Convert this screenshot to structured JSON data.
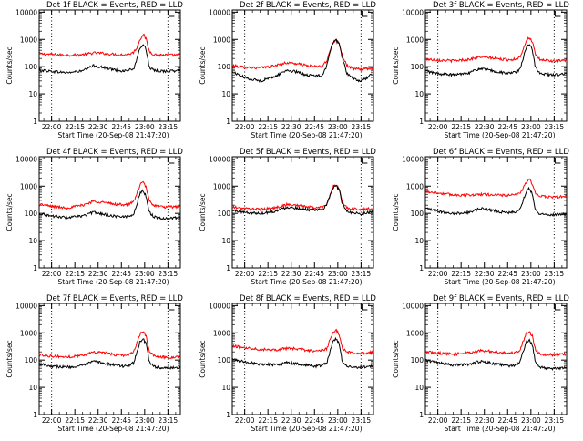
{
  "chart_data": [
    {
      "type": "line",
      "title": "Det 1f BLACK = Events, RED = LLD",
      "xlabel": "Start Time (20-Sep-08 21:47:20)",
      "ylabel": "Counts/sec",
      "x_tick_labels": [
        "22:00",
        "22:15",
        "22:30",
        "22:45",
        "23:00",
        "23:15"
      ],
      "x_tick_minutes": [
        0,
        15,
        30,
        45,
        60,
        75
      ],
      "xlim_minutes": [
        -8,
        83
      ],
      "vlines_minutes": [
        0,
        75
      ],
      "ylog": true,
      "ylim": [
        1,
        12000
      ],
      "y_tick_labels": [
        "1",
        "10",
        "100",
        "1000",
        "10000"
      ],
      "series": [
        {
          "color": "#ff0000",
          "x": [
            -8,
            0,
            10,
            20,
            27,
            33,
            40,
            46,
            50,
            53,
            55,
            57,
            59,
            61,
            63,
            66,
            70,
            75,
            83
          ],
          "values": [
            300,
            280,
            265,
            275,
            320,
            310,
            285,
            272,
            290,
            340,
            500,
            1000,
            1600,
            1000,
            360,
            280,
            270,
            265,
            270
          ]
        },
        {
          "color": "#000000",
          "x": [
            -8,
            0,
            10,
            20,
            27,
            33,
            40,
            46,
            50,
            53,
            55,
            57,
            59,
            61,
            63,
            66,
            70,
            75,
            83
          ],
          "values": [
            75,
            68,
            60,
            70,
            110,
            95,
            78,
            70,
            75,
            85,
            180,
            500,
            650,
            420,
            95,
            72,
            70,
            68,
            72
          ]
        }
      ]
    },
    {
      "type": "line",
      "title": "Det 2f BLACK = Events, RED = LLD",
      "xlabel": "Start Time (20-Sep-08 21:47:20)",
      "ylabel": "Counts/sec",
      "x_tick_labels": [
        "22:00",
        "22:15",
        "22:30",
        "22:45",
        "23:00",
        "23:15"
      ],
      "x_tick_minutes": [
        0,
        15,
        30,
        45,
        60,
        75
      ],
      "xlim_minutes": [
        -8,
        83
      ],
      "vlines_minutes": [
        0,
        75
      ],
      "ylog": true,
      "ylim": [
        1,
        12000
      ],
      "y_tick_labels": [
        "1",
        "10",
        "100",
        "1000",
        "10000"
      ],
      "series": [
        {
          "color": "#ff0000",
          "x": [
            -8,
            0,
            10,
            20,
            27,
            33,
            40,
            46,
            50,
            53,
            55,
            57,
            59,
            61,
            63,
            66,
            70,
            75,
            83
          ],
          "values": [
            110,
            95,
            90,
            110,
            140,
            130,
            110,
            100,
            105,
            160,
            420,
            800,
            980,
            700,
            250,
            110,
            85,
            80,
            90
          ]
        },
        {
          "color": "#000000",
          "x": [
            -8,
            0,
            10,
            20,
            27,
            33,
            40,
            46,
            50,
            53,
            55,
            57,
            59,
            61,
            63,
            66,
            70,
            75,
            83
          ],
          "values": [
            65,
            40,
            30,
            45,
            75,
            65,
            50,
            45,
            50,
            110,
            380,
            750,
            900,
            650,
            200,
            55,
            35,
            30,
            55
          ]
        }
      ]
    },
    {
      "type": "line",
      "title": "Det 3f BLACK = Events, RED = LLD",
      "xlabel": "Start Time (20-Sep-08 21:47:20)",
      "ylabel": "Counts/sec",
      "x_tick_labels": [
        "22:00",
        "22:15",
        "22:30",
        "22:45",
        "23:00",
        "23:15"
      ],
      "x_tick_minutes": [
        0,
        15,
        30,
        45,
        60,
        75
      ],
      "xlim_minutes": [
        -8,
        83
      ],
      "vlines_minutes": [
        0,
        75
      ],
      "ylog": true,
      "ylim": [
        1,
        12000
      ],
      "y_tick_labels": [
        "1",
        "10",
        "100",
        "1000",
        "10000"
      ],
      "series": [
        {
          "color": "#ff0000",
          "x": [
            -8,
            0,
            10,
            20,
            27,
            33,
            40,
            46,
            50,
            53,
            55,
            57,
            59,
            61,
            63,
            66,
            70,
            75,
            83
          ],
          "values": [
            190,
            175,
            165,
            185,
            230,
            215,
            190,
            180,
            190,
            230,
            450,
            900,
            1200,
            800,
            260,
            180,
            170,
            160,
            170
          ]
        },
        {
          "color": "#000000",
          "x": [
            -8,
            0,
            10,
            20,
            27,
            33,
            40,
            46,
            50,
            53,
            55,
            57,
            59,
            61,
            63,
            66,
            70,
            75,
            83
          ],
          "values": [
            70,
            55,
            50,
            60,
            85,
            75,
            62,
            58,
            62,
            80,
            200,
            500,
            650,
            400,
            90,
            58,
            52,
            50,
            55
          ]
        }
      ]
    },
    {
      "type": "line",
      "title": "Det 4f BLACK = Events, RED = LLD",
      "xlabel": "Start Time (20-Sep-08 21:47:20)",
      "ylabel": "Counts/sec",
      "x_tick_labels": [
        "22:00",
        "22:15",
        "22:30",
        "22:45",
        "23:00",
        "23:15"
      ],
      "x_tick_minutes": [
        0,
        15,
        30,
        45,
        60,
        75
      ],
      "xlim_minutes": [
        -8,
        83
      ],
      "vlines_minutes": [
        0,
        75
      ],
      "ylog": true,
      "ylim": [
        1,
        12000
      ],
      "y_tick_labels": [
        "1",
        "10",
        "100",
        "1000",
        "10000"
      ],
      "series": [
        {
          "color": "#ff0000",
          "x": [
            -8,
            0,
            10,
            20,
            27,
            33,
            40,
            46,
            50,
            53,
            55,
            57,
            59,
            61,
            63,
            66,
            70,
            75,
            83
          ],
          "values": [
            220,
            180,
            160,
            200,
            280,
            260,
            220,
            210,
            220,
            270,
            550,
            1100,
            1400,
            900,
            280,
            200,
            175,
            170,
            180
          ]
        },
        {
          "color": "#000000",
          "x": [
            -8,
            0,
            10,
            20,
            27,
            33,
            40,
            46,
            50,
            53,
            55,
            57,
            59,
            61,
            63,
            66,
            70,
            75,
            83
          ],
          "values": [
            100,
            80,
            70,
            80,
            110,
            95,
            80,
            75,
            80,
            95,
            220,
            550,
            700,
            420,
            110,
            75,
            68,
            65,
            70
          ]
        }
      ]
    },
    {
      "type": "line",
      "title": "Det 5f BLACK = Events, RED = LLD",
      "xlabel": "Start Time (20-Sep-08 21:47:20)",
      "ylabel": "Counts/sec",
      "x_tick_labels": [
        "22:00",
        "22:15",
        "22:30",
        "22:45",
        "23:00",
        "23:15"
      ],
      "x_tick_minutes": [
        0,
        15,
        30,
        45,
        60,
        75
      ],
      "xlim_minutes": [
        -8,
        83
      ],
      "vlines_minutes": [
        0,
        75
      ],
      "ylog": true,
      "ylim": [
        1,
        12000
      ],
      "y_tick_labels": [
        "1",
        "10",
        "100",
        "1000",
        "10000"
      ],
      "series": [
        {
          "color": "#ff0000",
          "x": [
            -8,
            0,
            10,
            20,
            27,
            33,
            40,
            46,
            50,
            53,
            55,
            57,
            59,
            61,
            63,
            66,
            70,
            75,
            83
          ],
          "values": [
            170,
            150,
            140,
            160,
            210,
            200,
            175,
            160,
            170,
            230,
            500,
            950,
            1150,
            750,
            240,
            160,
            145,
            140,
            150
          ]
        },
        {
          "color": "#000000",
          "x": [
            -8,
            0,
            10,
            20,
            27,
            33,
            40,
            46,
            50,
            53,
            55,
            57,
            59,
            61,
            63,
            66,
            70,
            75,
            83
          ],
          "values": [
            130,
            110,
            100,
            120,
            170,
            160,
            140,
            130,
            140,
            200,
            470,
            900,
            1050,
            700,
            210,
            120,
            105,
            100,
            115
          ]
        }
      ]
    },
    {
      "type": "line",
      "title": "Det 6f BLACK = Events, RED = LLD",
      "xlabel": "Start Time (20-Sep-08 21:47:20)",
      "ylabel": "Counts/sec",
      "x_tick_labels": [
        "22:00",
        "22:15",
        "22:30",
        "22:45",
        "23:00",
        "23:15"
      ],
      "x_tick_minutes": [
        0,
        15,
        30,
        45,
        60,
        75
      ],
      "xlim_minutes": [
        -8,
        83
      ],
      "vlines_minutes": [
        0,
        75
      ],
      "ylog": true,
      "ylim": [
        1,
        12000
      ],
      "y_tick_labels": [
        "1",
        "10",
        "100",
        "1000",
        "10000"
      ],
      "series": [
        {
          "color": "#ff0000",
          "x": [
            -8,
            0,
            10,
            20,
            27,
            33,
            40,
            46,
            50,
            53,
            55,
            57,
            59,
            61,
            63,
            66,
            70,
            75,
            83
          ],
          "values": [
            650,
            560,
            480,
            470,
            500,
            490,
            470,
            460,
            480,
            560,
            850,
            1450,
            1750,
            1200,
            520,
            420,
            410,
            400,
            420
          ]
        },
        {
          "color": "#000000",
          "x": [
            -8,
            0,
            10,
            20,
            27,
            33,
            40,
            46,
            50,
            53,
            55,
            57,
            59,
            61,
            63,
            66,
            70,
            75,
            83
          ],
          "values": [
            150,
            120,
            100,
            110,
            150,
            140,
            115,
            105,
            115,
            140,
            300,
            650,
            850,
            500,
            130,
            95,
            90,
            90,
            95
          ]
        }
      ]
    },
    {
      "type": "line",
      "title": "Det 7f BLACK = Events, RED = LLD",
      "xlabel": "Start Time (20-Sep-08 21:47:20)",
      "ylabel": "Counts/sec",
      "x_tick_labels": [
        "22:00",
        "22:15",
        "22:30",
        "22:45",
        "23:00",
        "23:15"
      ],
      "x_tick_minutes": [
        0,
        15,
        30,
        45,
        60,
        75
      ],
      "xlim_minutes": [
        -8,
        83
      ],
      "vlines_minutes": [
        0,
        75
      ],
      "ylog": true,
      "ylim": [
        1,
        12000
      ],
      "y_tick_labels": [
        "1",
        "10",
        "100",
        "1000",
        "10000"
      ],
      "series": [
        {
          "color": "#ff0000",
          "x": [
            -8,
            0,
            10,
            20,
            27,
            33,
            40,
            46,
            50,
            53,
            55,
            57,
            59,
            61,
            63,
            66,
            70,
            75,
            83
          ],
          "values": [
            160,
            140,
            130,
            150,
            200,
            190,
            160,
            150,
            160,
            200,
            450,
            900,
            1150,
            750,
            200,
            140,
            130,
            125,
            135
          ]
        },
        {
          "color": "#000000",
          "x": [
            -8,
            0,
            10,
            20,
            27,
            33,
            40,
            46,
            50,
            53,
            55,
            57,
            59,
            61,
            63,
            66,
            70,
            75,
            83
          ],
          "values": [
            75,
            60,
            55,
            62,
            90,
            80,
            66,
            60,
            65,
            80,
            200,
            480,
            600,
            380,
            85,
            58,
            52,
            50,
            55
          ]
        }
      ]
    },
    {
      "type": "line",
      "title": "Det 8f BLACK = Events, RED = LLD",
      "xlabel": "Start Time (20-Sep-08 21:47:20)",
      "ylabel": "Counts/sec",
      "x_tick_labels": [
        "22:00",
        "22:15",
        "22:30",
        "22:45",
        "23:00",
        "23:15"
      ],
      "x_tick_minutes": [
        0,
        15,
        30,
        45,
        60,
        75
      ],
      "xlim_minutes": [
        -8,
        83
      ],
      "vlines_minutes": [
        0,
        75
      ],
      "ylog": true,
      "ylim": [
        1,
        12000
      ],
      "y_tick_labels": [
        "1",
        "10",
        "100",
        "1000",
        "10000"
      ],
      "series": [
        {
          "color": "#ff0000",
          "x": [
            -8,
            0,
            10,
            20,
            27,
            33,
            40,
            46,
            50,
            53,
            55,
            57,
            59,
            61,
            63,
            66,
            70,
            75,
            83
          ],
          "values": [
            330,
            290,
            250,
            240,
            270,
            260,
            230,
            215,
            225,
            270,
            550,
            1000,
            1250,
            850,
            260,
            200,
            185,
            180,
            190
          ]
        },
        {
          "color": "#000000",
          "x": [
            -8,
            0,
            10,
            20,
            27,
            33,
            40,
            46,
            50,
            53,
            55,
            57,
            59,
            61,
            63,
            66,
            70,
            75,
            83
          ],
          "values": [
            110,
            85,
            72,
            68,
            80,
            75,
            65,
            60,
            65,
            80,
            210,
            480,
            620,
            380,
            80,
            58,
            55,
            55,
            58
          ]
        }
      ]
    },
    {
      "type": "line",
      "title": "Det 9f BLACK = Events, RED = LLD",
      "xlabel": "Start Time (20-Sep-08 21:47:20)",
      "ylabel": "Counts/sec",
      "x_tick_labels": [
        "22:00",
        "22:15",
        "22:30",
        "22:45",
        "23:00",
        "23:15"
      ],
      "x_tick_minutes": [
        0,
        15,
        30,
        45,
        60,
        75
      ],
      "xlim_minutes": [
        -8,
        83
      ],
      "vlines_minutes": [
        0,
        75
      ],
      "ylog": true,
      "ylim": [
        1,
        12000
      ],
      "y_tick_labels": [
        "1",
        "10",
        "100",
        "1000",
        "10000"
      ],
      "series": [
        {
          "color": "#ff0000",
          "x": [
            -8,
            0,
            10,
            20,
            27,
            33,
            40,
            46,
            50,
            53,
            55,
            57,
            59,
            61,
            63,
            66,
            70,
            75,
            83
          ],
          "values": [
            200,
            180,
            165,
            185,
            220,
            210,
            190,
            180,
            190,
            230,
            480,
            950,
            1150,
            750,
            230,
            170,
            160,
            155,
            165
          ]
        },
        {
          "color": "#000000",
          "x": [
            -8,
            0,
            10,
            20,
            27,
            33,
            40,
            46,
            50,
            53,
            55,
            57,
            59,
            61,
            63,
            66,
            70,
            75,
            83
          ],
          "values": [
            100,
            80,
            65,
            70,
            90,
            80,
            68,
            62,
            66,
            85,
            200,
            450,
            560,
            350,
            80,
            55,
            50,
            48,
            52
          ]
        }
      ]
    }
  ]
}
